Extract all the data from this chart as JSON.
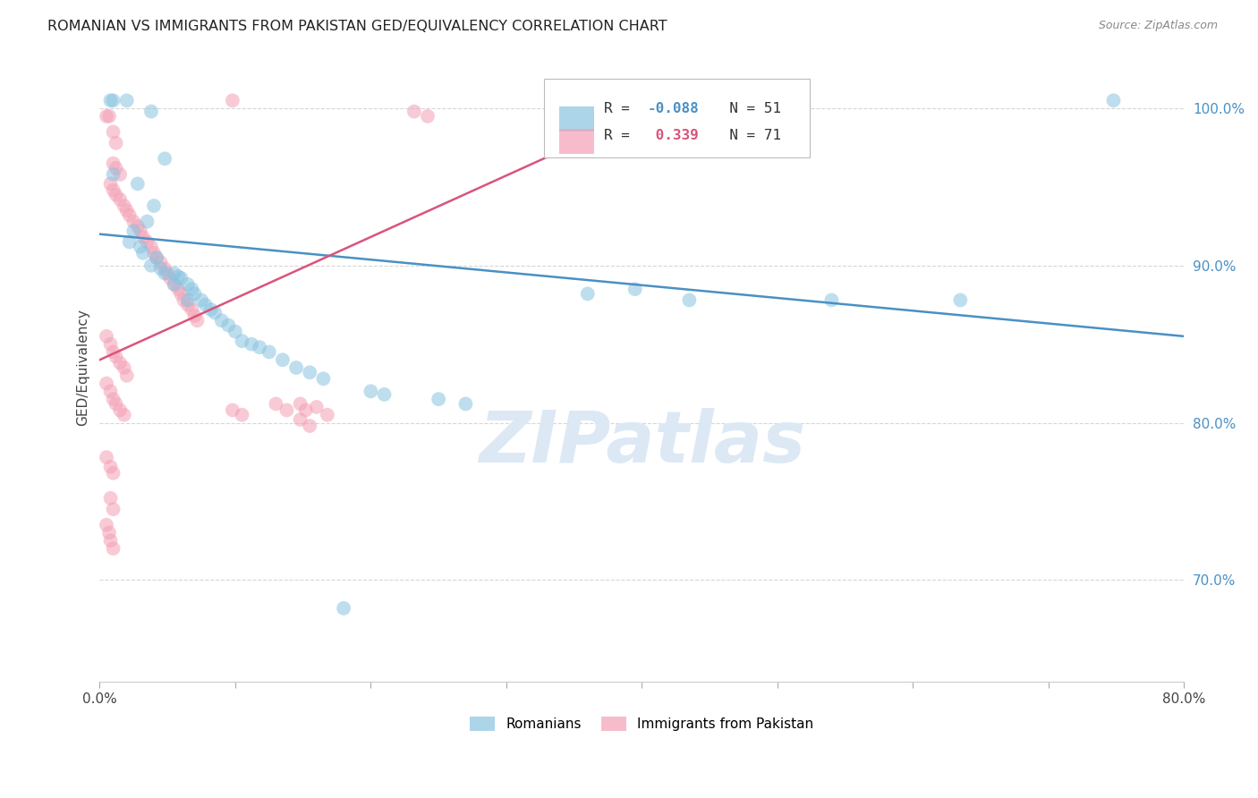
{
  "title": "ROMANIAN VS IMMIGRANTS FROM PAKISTAN GED/EQUIVALENCY CORRELATION CHART",
  "source": "Source: ZipAtlas.com",
  "ylabel": "GED/Equivalency",
  "xlim": [
    0.0,
    0.8
  ],
  "ylim": [
    0.635,
    1.035
  ],
  "yticks": [
    0.7,
    0.8,
    0.9,
    1.0
  ],
  "ytick_labels": [
    "70.0%",
    "80.0%",
    "90.0%",
    "100.0%"
  ],
  "xticks": [
    0.0,
    0.1,
    0.2,
    0.3,
    0.4,
    0.5,
    0.6,
    0.7,
    0.8
  ],
  "xtick_labels": [
    "0.0%",
    "",
    "",
    "",
    "",
    "",
    "",
    "",
    "80.0%"
  ],
  "background_color": "#ffffff",
  "grid_color": "#cccccc",
  "blue_color": "#89c4e1",
  "pink_color": "#f4a0b5",
  "blue_line_color": "#4a90c4",
  "pink_line_color": "#d9547a",
  "watermark": "ZIPatlas",
  "blue_scatter": [
    [
      0.008,
      1.005
    ],
    [
      0.01,
      1.005
    ],
    [
      0.02,
      1.005
    ],
    [
      0.038,
      0.998
    ],
    [
      0.048,
      0.968
    ],
    [
      0.01,
      0.958
    ],
    [
      0.028,
      0.952
    ],
    [
      0.04,
      0.938
    ],
    [
      0.035,
      0.928
    ],
    [
      0.025,
      0.922
    ],
    [
      0.022,
      0.915
    ],
    [
      0.03,
      0.912
    ],
    [
      0.032,
      0.908
    ],
    [
      0.042,
      0.905
    ],
    [
      0.038,
      0.9
    ],
    [
      0.045,
      0.898
    ],
    [
      0.048,
      0.895
    ],
    [
      0.055,
      0.895
    ],
    [
      0.058,
      0.893
    ],
    [
      0.06,
      0.892
    ],
    [
      0.055,
      0.888
    ],
    [
      0.065,
      0.888
    ],
    [
      0.068,
      0.885
    ],
    [
      0.07,
      0.882
    ],
    [
      0.065,
      0.878
    ],
    [
      0.075,
      0.878
    ],
    [
      0.078,
      0.875
    ],
    [
      0.082,
      0.872
    ],
    [
      0.085,
      0.87
    ],
    [
      0.09,
      0.865
    ],
    [
      0.095,
      0.862
    ],
    [
      0.1,
      0.858
    ],
    [
      0.105,
      0.852
    ],
    [
      0.112,
      0.85
    ],
    [
      0.118,
      0.848
    ],
    [
      0.125,
      0.845
    ],
    [
      0.135,
      0.84
    ],
    [
      0.145,
      0.835
    ],
    [
      0.155,
      0.832
    ],
    [
      0.165,
      0.828
    ],
    [
      0.2,
      0.82
    ],
    [
      0.21,
      0.818
    ],
    [
      0.25,
      0.815
    ],
    [
      0.27,
      0.812
    ],
    [
      0.36,
      0.882
    ],
    [
      0.395,
      0.885
    ],
    [
      0.435,
      0.878
    ],
    [
      0.54,
      0.878
    ],
    [
      0.635,
      0.878
    ],
    [
      0.748,
      1.005
    ],
    [
      0.18,
      0.682
    ]
  ],
  "pink_scatter": [
    [
      0.005,
      0.995
    ],
    [
      0.007,
      0.995
    ],
    [
      0.01,
      0.985
    ],
    [
      0.012,
      0.978
    ],
    [
      0.01,
      0.965
    ],
    [
      0.012,
      0.962
    ],
    [
      0.015,
      0.958
    ],
    [
      0.008,
      0.952
    ],
    [
      0.01,
      0.948
    ],
    [
      0.012,
      0.945
    ],
    [
      0.015,
      0.942
    ],
    [
      0.018,
      0.938
    ],
    [
      0.02,
      0.935
    ],
    [
      0.022,
      0.932
    ],
    [
      0.025,
      0.928
    ],
    [
      0.028,
      0.925
    ],
    [
      0.03,
      0.922
    ],
    [
      0.032,
      0.918
    ],
    [
      0.035,
      0.915
    ],
    [
      0.038,
      0.912
    ],
    [
      0.04,
      0.908
    ],
    [
      0.042,
      0.905
    ],
    [
      0.045,
      0.902
    ],
    [
      0.048,
      0.898
    ],
    [
      0.05,
      0.895
    ],
    [
      0.052,
      0.892
    ],
    [
      0.055,
      0.888
    ],
    [
      0.058,
      0.885
    ],
    [
      0.06,
      0.882
    ],
    [
      0.062,
      0.878
    ],
    [
      0.065,
      0.875
    ],
    [
      0.068,
      0.872
    ],
    [
      0.07,
      0.868
    ],
    [
      0.072,
      0.865
    ],
    [
      0.005,
      0.855
    ],
    [
      0.008,
      0.85
    ],
    [
      0.01,
      0.845
    ],
    [
      0.012,
      0.842
    ],
    [
      0.015,
      0.838
    ],
    [
      0.018,
      0.835
    ],
    [
      0.02,
      0.83
    ],
    [
      0.005,
      0.825
    ],
    [
      0.008,
      0.82
    ],
    [
      0.01,
      0.815
    ],
    [
      0.012,
      0.812
    ],
    [
      0.015,
      0.808
    ],
    [
      0.018,
      0.805
    ],
    [
      0.005,
      0.778
    ],
    [
      0.008,
      0.772
    ],
    [
      0.01,
      0.768
    ],
    [
      0.008,
      0.752
    ],
    [
      0.01,
      0.745
    ],
    [
      0.005,
      0.735
    ],
    [
      0.007,
      0.73
    ],
    [
      0.008,
      0.725
    ],
    [
      0.01,
      0.72
    ],
    [
      0.13,
      0.812
    ],
    [
      0.138,
      0.808
    ],
    [
      0.148,
      0.802
    ],
    [
      0.155,
      0.798
    ],
    [
      0.16,
      0.81
    ],
    [
      0.168,
      0.805
    ],
    [
      0.098,
      1.005
    ],
    [
      0.232,
      0.998
    ],
    [
      0.242,
      0.995
    ],
    [
      0.098,
      0.808
    ],
    [
      0.105,
      0.805
    ],
    [
      0.148,
      0.812
    ],
    [
      0.152,
      0.808
    ]
  ],
  "blue_line": {
    "x0": 0.0,
    "y0": 0.92,
    "x1": 0.8,
    "y1": 0.855
  },
  "pink_line": {
    "x0": 0.0,
    "y0": 0.84,
    "x1": 0.435,
    "y1": 1.01
  }
}
